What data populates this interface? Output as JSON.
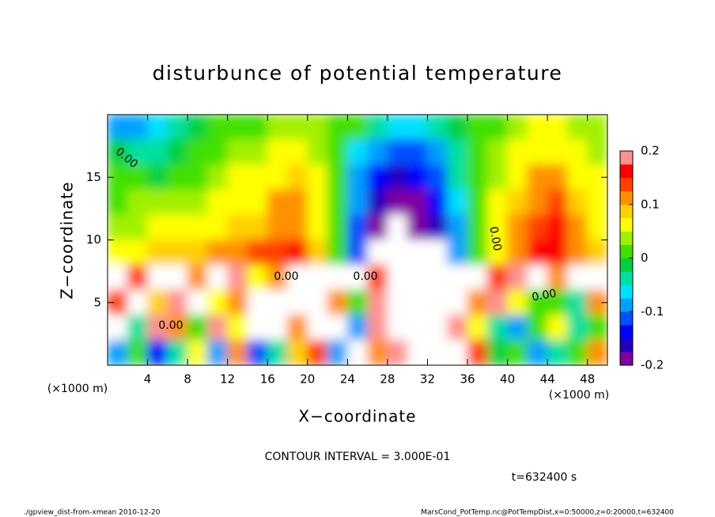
{
  "chart_data": {
    "type": "contour",
    "title": "disturbunce of potential temperature",
    "xlabel": "X−coordinate",
    "ylabel": "Z−coordinate",
    "x_unit": "(×1000 m)",
    "y_unit": "(×1000 m)",
    "xlim": [
      0,
      50
    ],
    "ylim": [
      0,
      20
    ],
    "xticks": [
      4,
      8,
      12,
      16,
      20,
      24,
      28,
      32,
      36,
      40,
      44,
      48
    ],
    "yticks": [
      5,
      10,
      15
    ],
    "x": [
      1,
      3,
      5,
      7,
      9,
      11,
      13,
      15,
      17,
      19,
      21,
      23,
      25,
      27,
      29,
      31,
      33,
      35,
      37,
      39,
      41,
      43,
      45,
      47,
      49
    ],
    "y": [
      19,
      17,
      15,
      13,
      11,
      9,
      7,
      5,
      3,
      1
    ],
    "z": [
      [
        -0.08,
        -0.08,
        -0.06,
        -0.04,
        -0.01,
        0.01,
        0.01,
        0.02,
        0.03,
        0.03,
        0.03,
        0.01,
        0.0,
        -0.03,
        -0.06,
        -0.07,
        -0.05,
        -0.02,
        0.01,
        0.02,
        0.04,
        0.05,
        0.06,
        0.04,
        0.03
      ],
      [
        -0.01,
        -0.03,
        -0.03,
        -0.02,
        0.0,
        0.02,
        0.03,
        0.04,
        0.06,
        0.07,
        0.04,
        0.0,
        -0.06,
        -0.1,
        -0.12,
        -0.11,
        -0.08,
        -0.03,
        0.0,
        0.03,
        0.05,
        0.07,
        0.06,
        0.05,
        0.04
      ],
      [
        0.01,
        0.0,
        -0.01,
        0.0,
        0.02,
        0.04,
        0.05,
        0.05,
        0.07,
        0.08,
        0.05,
        0.0,
        -0.08,
        -0.13,
        -0.16,
        -0.15,
        -0.11,
        -0.05,
        0.0,
        0.04,
        0.07,
        0.1,
        0.1,
        0.07,
        0.05
      ],
      [
        0.02,
        0.03,
        0.03,
        0.03,
        0.04,
        0.05,
        0.06,
        0.07,
        0.1,
        0.11,
        0.06,
        0.0,
        -0.1,
        -0.16,
        -0.19,
        -0.18,
        -0.14,
        -0.06,
        0.0,
        0.05,
        0.08,
        0.12,
        0.13,
        0.09,
        0.06
      ],
      [
        0.03,
        0.04,
        0.05,
        0.05,
        0.06,
        0.07,
        0.08,
        0.09,
        0.12,
        0.12,
        0.06,
        0.0,
        -0.11,
        -0.18,
        -0.25,
        -0.2,
        -0.17,
        -0.08,
        0.0,
        0.05,
        0.1,
        0.15,
        0.16,
        0.1,
        0.07
      ],
      [
        0.06,
        0.07,
        0.08,
        0.08,
        0.09,
        0.1,
        0.11,
        0.13,
        0.15,
        0.16,
        0.08,
        0.0,
        -0.12,
        -0.25,
        -0.25,
        -0.22,
        -0.25,
        -0.1,
        0.0,
        0.06,
        0.12,
        0.16,
        0.16,
        0.12,
        0.08
      ],
      [
        0.25,
        0.15,
        0.25,
        0.25,
        0.1,
        0.25,
        0.2,
        0.05,
        0.12,
        0.25,
        0.25,
        0.25,
        0.3,
        0.15,
        0.25,
        0.3,
        -0.25,
        0.25,
        0.25,
        0.15,
        0.2,
        0.25,
        0.1,
        0.25,
        0.25
      ],
      [
        0.15,
        0.25,
        0.08,
        0.2,
        0.25,
        0.05,
        0.12,
        0.25,
        0.25,
        0.25,
        0.3,
        0.12,
        0.0,
        0.18,
        0.25,
        0.3,
        0.25,
        0.3,
        0.1,
        0.18,
        0.05,
        0.0,
        0.02,
        -0.05,
        0.1
      ],
      [
        0.25,
        -0.05,
        0.2,
        0.1,
        0.0,
        0.18,
        0.05,
        0.25,
        0.22,
        0.1,
        0.25,
        0.3,
        -0.1,
        0.18,
        0.25,
        0.25,
        0.3,
        0.2,
        0.05,
        -0.05,
        -0.1,
        0.0,
        0.05,
        -0.05,
        0.02
      ],
      [
        -0.08,
        0.02,
        -0.15,
        -0.05,
        0.05,
        -0.1,
        0.1,
        -0.12,
        -0.05,
        0.08,
        0.15,
        -0.08,
        0.25,
        0.1,
        0.18,
        0.25,
        0.3,
        0.25,
        0.15,
        -0.02,
        0.0,
        -0.1,
        -0.05,
        0.0,
        0.1
      ]
    ],
    "colorbar": {
      "clim": [
        -0.2,
        0.2
      ],
      "ticks": [
        -0.2,
        -0.1,
        0,
        0.1,
        0.2
      ],
      "colors": [
        "#8000a0",
        "#2000c0",
        "#0000ff",
        "#0050ff",
        "#00a0ff",
        "#00e0ff",
        "#00e0a0",
        "#00d040",
        "#40e000",
        "#a0f000",
        "#ffff00",
        "#ffd000",
        "#ff9000",
        "#ff4000",
        "#ff0000",
        "#ff9090"
      ],
      "out_of_range_color": "#ffffff"
    },
    "contour_labels": [
      "0.00",
      "0.00",
      "0.00",
      "0.00",
      "0.00",
      "0.00"
    ],
    "contour_interval": "CONTOUR INTERVAL = 3.000E-01",
    "time_label": "t=632400 s",
    "footer_left": "./gpview_dist-from-xmean  2010-12-20",
    "footer_right": "MarsCond_PotTemp.nc@PotTempDist,x=0:50000,z=0:20000,t=632400"
  }
}
